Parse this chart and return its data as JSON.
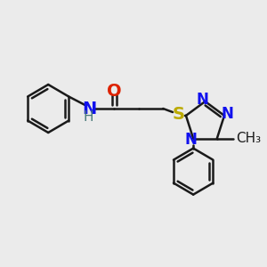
{
  "background_color": "#ebebeb",
  "bond_color": "#1a1a1a",
  "bond_width": 1.8,
  "atom_colors": {
    "N": "#1010ee",
    "O": "#dd2200",
    "S": "#bbaa00",
    "C": "#1a1a1a",
    "H": "#4a7a7a"
  },
  "font_size_large": 14,
  "font_size_small": 12,
  "font_size_methyl": 11,
  "font_size_H": 11
}
